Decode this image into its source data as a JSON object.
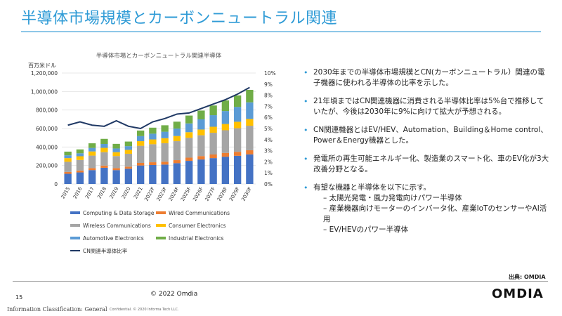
{
  "page": {
    "title": "半導体市場規模とカーボンニュートラル関連",
    "page_number": "15",
    "copyright": "© 2022 Omdia",
    "source": "出典: OMDIA",
    "logo": "OMDIA",
    "classification": "Information Classification: General",
    "confidential": "Confidential. © 2020 Informa Tech LLC."
  },
  "bullets": [
    {
      "text": "2030年までの半導体市場規模とCN(カーボンニュートラル）関連の電子機器に使われる半導体の比率を示した。"
    },
    {
      "text": "21年頃まではCN関連機器に消費される半導体比率は5%台で推移していたが、今後は2030年に9%に向けて拡大が予想される。"
    },
    {
      "text": "CN関連機器とはEV/HEV、Automation、Building＆Home control、Power＆Energy機器とした。"
    },
    {
      "text": "発電所の再生可能エネルギー化、製造業のスマート化、車のEV化が3大改善分野となる。"
    },
    {
      "text": "有望な機器と半導体を以下に示す。",
      "subs": [
        "– 太陽光発電・風力発電向けパワー半導体",
        "– 産業機器向けモーターのインバータ化、産業IoTのセンサーやAI活用",
        "– EV/HEVのパワー半導体"
      ]
    }
  ],
  "chart_data": {
    "type": "bar",
    "stacked": true,
    "title": "半導体市場とカーボンニュートラル関連半導体",
    "ylabel": "百万米ドル",
    "ylim": [
      0,
      1200000
    ],
    "y_ticks": [
      "0",
      "200,000",
      "400,000",
      "600,000",
      "800,000",
      "1,000,000",
      "1,200,000"
    ],
    "y2lim": [
      0,
      10
    ],
    "y2_ticks": [
      "0%",
      "1%",
      "2%",
      "3%",
      "4%",
      "5%",
      "6%",
      "7%",
      "8%",
      "9%",
      "10%"
    ],
    "categories": [
      "2015",
      "2016",
      "2017",
      "2018",
      "2019",
      "2020",
      "2021",
      "2022F",
      "2023F",
      "2024F",
      "2025F",
      "2026F",
      "2027F",
      "2028F",
      "2029F",
      "2030F"
    ],
    "series": [
      {
        "name": "Computing & Data Storage",
        "color": "#4472c4",
        "values": [
          110000,
          125000,
          150000,
          175000,
          150000,
          165000,
          200000,
          205000,
          210000,
          225000,
          250000,
          265000,
          280000,
          295000,
          305000,
          320000
        ]
      },
      {
        "name": "Wired Communications",
        "color": "#ed7d31",
        "values": [
          20000,
          20000,
          22000,
          24000,
          22000,
          22000,
          28000,
          30000,
          31000,
          33000,
          35000,
          37000,
          39000,
          41000,
          43000,
          45000
        ]
      },
      {
        "name": "Wireless Communications",
        "color": "#a5a5a5",
        "values": [
          110000,
          115000,
          135000,
          145000,
          130000,
          140000,
          185000,
          195000,
          200000,
          205000,
          215000,
          225000,
          235000,
          245000,
          255000,
          265000
        ]
      },
      {
        "name": "Consumer Electronics",
        "color": "#ffc000",
        "values": [
          40000,
          40000,
          45000,
          47000,
          42000,
          42000,
          50000,
          52000,
          54000,
          56000,
          60000,
          62000,
          65000,
          68000,
          70000,
          73000
        ]
      },
      {
        "name": "Automotive Electronics",
        "color": "#5b9bd5",
        "values": [
          30000,
          32000,
          38000,
          42000,
          40000,
          40000,
          55000,
          62000,
          70000,
          80000,
          95000,
          110000,
          125000,
          140000,
          160000,
          180000
        ]
      },
      {
        "name": "Industrial Electronics",
        "color": "#70ad47",
        "values": [
          40000,
          42000,
          50000,
          55000,
          50000,
          50000,
          60000,
          65000,
          70000,
          75000,
          85000,
          95000,
          105000,
          115000,
          125000,
          135000
        ]
      }
    ],
    "line": {
      "name": "CN関連半導体比率",
      "color": "#1f3864",
      "values": [
        5.3,
        5.6,
        5.3,
        5.2,
        5.7,
        5.2,
        5.0,
        5.6,
        5.9,
        6.3,
        6.4,
        6.8,
        7.2,
        7.6,
        8.1,
        8.7
      ]
    },
    "legend_position": "bottom"
  }
}
